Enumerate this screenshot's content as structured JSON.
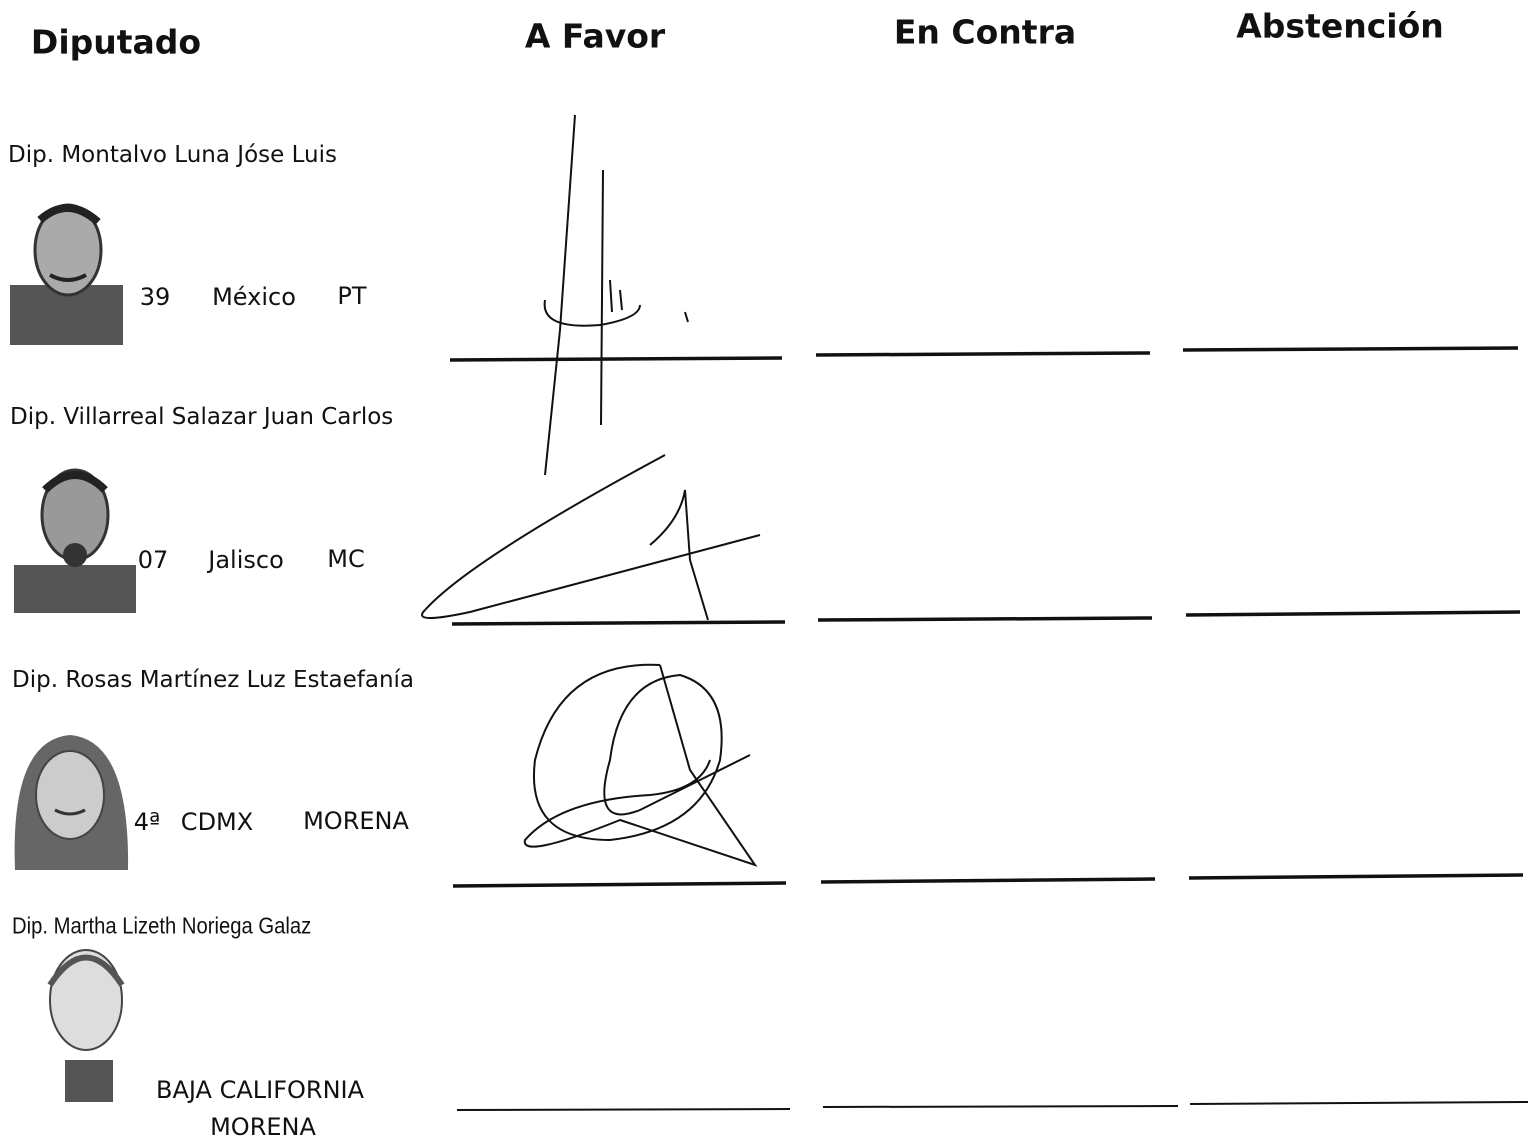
{
  "header": {
    "columns": [
      "Diputado",
      "A Favor",
      "En Contra",
      "Abstención"
    ]
  },
  "rows": [
    {
      "name": "Dip. Montalvo Luna Jóse Luis",
      "district": "39",
      "state": "México",
      "party": "PT"
    },
    {
      "name": "Dip. Villarreal Salazar Juan Carlos",
      "district": "07",
      "state": "Jalisco",
      "party": "MC"
    },
    {
      "name": "Dip. Rosas Martínez Luz Estaefanía",
      "district": "4ª",
      "state": "CDMX",
      "party": "MORENA"
    },
    {
      "name": "Dip. Martha Lizeth Noriega Galaz",
      "state": "BAJA CALIFORNIA",
      "party": "MORENA"
    }
  ]
}
